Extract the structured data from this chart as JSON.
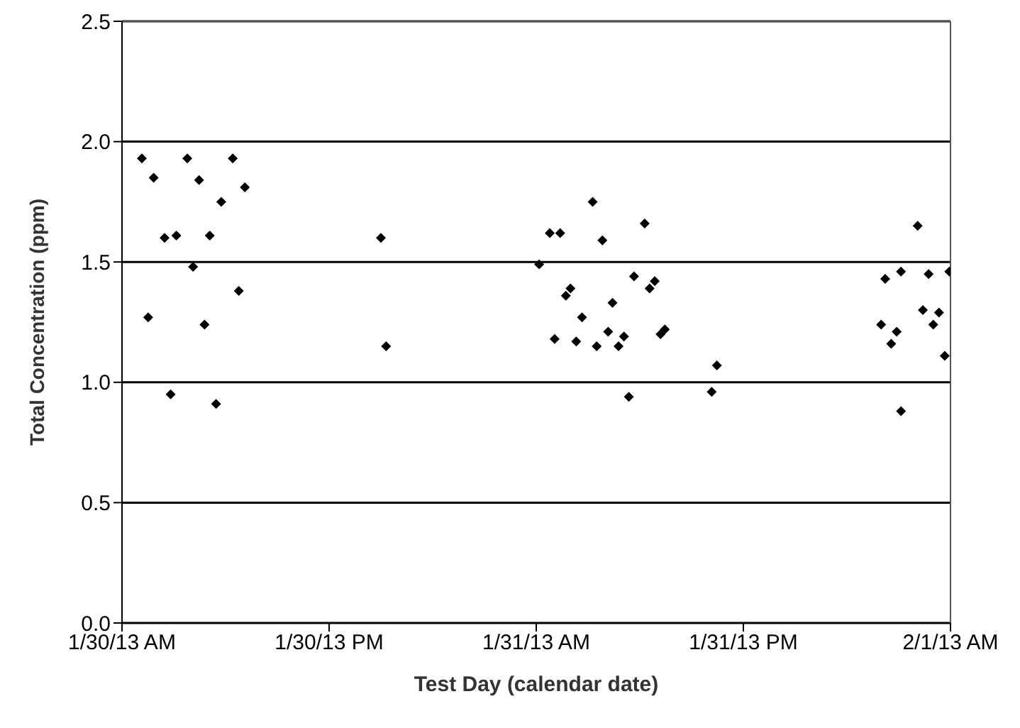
{
  "chart_data": {
    "type": "scatter",
    "xlabel": "Test Day (calendar date)",
    "ylabel": "Total Concentration (ppm)",
    "xlim": [
      "--01-30T00:00",
      "--02-01T00:00"
    ],
    "xticks": [
      {
        "value": "--01-30T00:00",
        "label": "1/30/13 AM"
      },
      {
        "value": "--01-30T12:00",
        "label": "1/30/13 PM"
      },
      {
        "value": "--01-31T00:00",
        "label": "1/31/13 AM"
      },
      {
        "value": "--01-31T12:00",
        "label": "1/31/13 PM"
      },
      {
        "value": "--02-01T00:00",
        "label": "2/1/13 AM"
      }
    ],
    "ylim": [
      0,
      2.5
    ],
    "yticks": [
      {
        "value": 0,
        "label": "0.0"
      },
      {
        "value": 0.5,
        "label": "0.5"
      },
      {
        "value": 1,
        "label": "1.0"
      },
      {
        "value": 1.5,
        "label": "1.5"
      },
      {
        "value": 2,
        "label": "2.0"
      },
      {
        "value": 2.5,
        "label": "2.5"
      }
    ],
    "grid": "y",
    "marker": "diamond",
    "series": [
      {
        "color": "#000000",
        "x": [
          "--01-30T01:09",
          "--01-30T03:47",
          "--01-30T06:25",
          "--01-30T01:50",
          "--01-30T04:28",
          "--01-30T07:07",
          "--01-30T05:45",
          "--01-30T02:28",
          "--01-30T03:09",
          "--01-30T05:05",
          "--01-30T04:07",
          "--01-30T06:46",
          "--01-30T01:31",
          "--01-30T04:47",
          "--01-30T02:49",
          "--01-30T05:27",
          "--01-30T15:00",
          "--01-30T15:18",
          "--01-31T03:16",
          "--01-31T00:47",
          "--01-31T01:23",
          "--01-31T06:17",
          "--01-31T03:50",
          "--01-31T00:10",
          "--01-31T05:40",
          "--01-31T06:52",
          "--01-31T06:34",
          "--01-31T01:59",
          "--01-31T01:43",
          "--01-31T04:25",
          "--01-31T02:39",
          "--01-31T01:04",
          "--01-31T02:19",
          "--01-31T04:10",
          "--01-31T05:05",
          "--01-31T03:30",
          "--01-31T04:46",
          "--01-31T07:27",
          "--01-31T07:12",
          "--01-31T10:28",
          "--01-31T05:22",
          "--01-31T10:10",
          "--01-31T22:06",
          "--01-31T20:13",
          "--01-31T21:08",
          "--01-31T22:44",
          "--01-31T23:56",
          "--01-31T22:24",
          "--01-31T23:20",
          "--01-31T23:00",
          "--01-31T19:59",
          "--01-31T20:53",
          "--01-31T20:34",
          "--01-31T23:40",
          "--01-31T21:08"
        ],
        "values": [
          1.93,
          1.93,
          1.93,
          1.85,
          1.84,
          1.81,
          1.75,
          1.6,
          1.61,
          1.61,
          1.48,
          1.38,
          1.27,
          1.24,
          0.95,
          0.91,
          1.6,
          1.15,
          1.75,
          1.62,
          1.62,
          1.66,
          1.59,
          1.49,
          1.44,
          1.42,
          1.39,
          1.39,
          1.36,
          1.33,
          1.27,
          1.18,
          1.17,
          1.21,
          1.19,
          1.15,
          1.15,
          1.22,
          1.2,
          1.07,
          0.94,
          0.96,
          1.65,
          1.43,
          1.46,
          1.45,
          1.46,
          1.3,
          1.29,
          1.24,
          1.24,
          1.21,
          1.16,
          1.11,
          0.88
        ]
      }
    ]
  }
}
